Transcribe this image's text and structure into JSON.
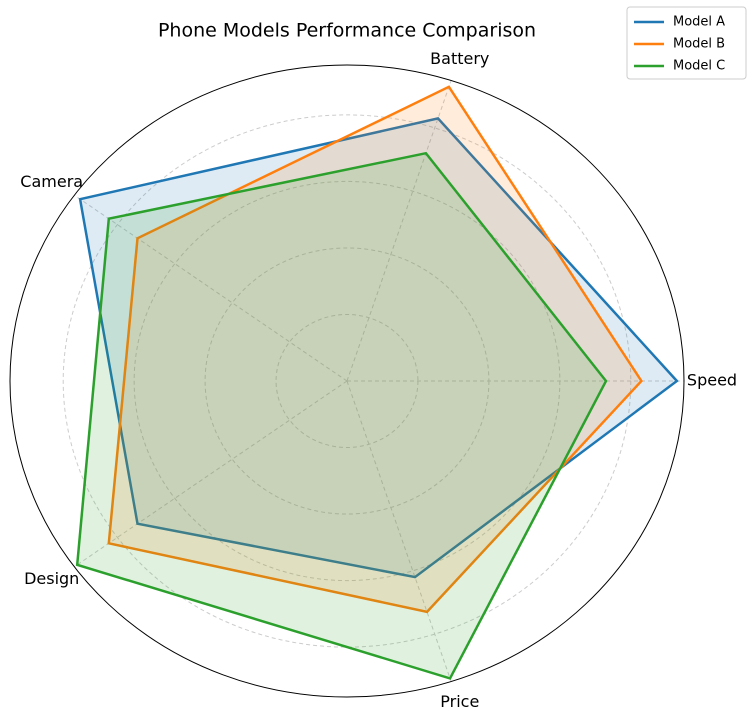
{
  "chart_data": {
    "type": "radar",
    "title": "Phone Models Performance Comparison",
    "categories": [
      "Speed",
      "Battery",
      "Camera",
      "Design",
      "Price"
    ],
    "series": [
      {
        "name": "Model A",
        "color": "#1f77b4",
        "values": [
          9.3,
          8.3,
          9.3,
          7.3,
          6.2
        ]
      },
      {
        "name": "Model B",
        "color": "#ff7f0e",
        "values": [
          8.3,
          9.3,
          7.3,
          8.3,
          7.3
        ]
      },
      {
        "name": "Model C",
        "color": "#2ca02c",
        "values": [
          7.3,
          7.2,
          8.3,
          9.4,
          9.4
        ]
      }
    ],
    "rlim": [
      0,
      9.5
    ],
    "rticks": [
      2,
      4,
      6,
      8
    ],
    "grid": true,
    "legend": "upper right"
  }
}
